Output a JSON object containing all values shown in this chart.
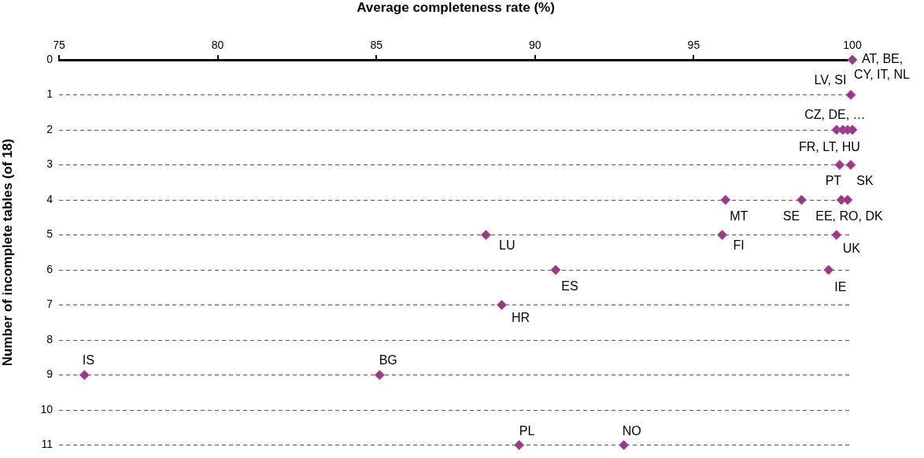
{
  "chart_data": {
    "type": "scatter",
    "xlabel": "Average completeness rate (%)",
    "ylabel": "Number of incomplete tables (of 18)",
    "xlim": [
      75,
      100
    ],
    "xticks": [
      75,
      80,
      85,
      90,
      95,
      100
    ],
    "ylim": [
      11,
      0
    ],
    "yticks": [
      0,
      1,
      2,
      3,
      4,
      5,
      6,
      7,
      8,
      9,
      10,
      11
    ],
    "grid": "y",
    "legend": false,
    "marker": "diamond",
    "series": [
      {
        "color": "#943c8a",
        "x": [
          100,
          99.95,
          99.5,
          99.7,
          99.85,
          100,
          99.6,
          99.95,
          96.0,
          98.4,
          99.65,
          99.85,
          88.45,
          95.9,
          99.5,
          90.65,
          99.25,
          88.95,
          75.8,
          85.1,
          89.5,
          92.8
        ],
        "values": [
          0,
          1,
          2,
          2,
          2,
          2,
          3,
          3,
          4,
          4,
          4,
          4,
          5,
          5,
          5,
          6,
          6,
          7,
          9,
          9,
          11,
          11
        ]
      }
    ],
    "annotations": [
      {
        "text": "AT, BE,",
        "x": 100,
        "y": 0
      },
      {
        "text": "CY, IT, NL",
        "x": 100,
        "y": 0
      },
      {
        "text": "LV, SI",
        "x": 99.95,
        "y": 1
      },
      {
        "text": "CZ, DE, …",
        "x": 99.85,
        "y": 2
      },
      {
        "text": "FR, LT, HU",
        "x": 99.7,
        "y": 2
      },
      {
        "text": "PT",
        "x": 99.6,
        "y": 3
      },
      {
        "text": "SK",
        "x": 99.95,
        "y": 3
      },
      {
        "text": "MT",
        "x": 96.0,
        "y": 4
      },
      {
        "text": "SE",
        "x": 98.4,
        "y": 4
      },
      {
        "text": "EE, RO, DK",
        "x": 99.85,
        "y": 4
      },
      {
        "text": "LU",
        "x": 88.45,
        "y": 5
      },
      {
        "text": "FI",
        "x": 95.9,
        "y": 5
      },
      {
        "text": "UK",
        "x": 99.5,
        "y": 5
      },
      {
        "text": "ES",
        "x": 90.65,
        "y": 6
      },
      {
        "text": "IE",
        "x": 99.25,
        "y": 6
      },
      {
        "text": "HR",
        "x": 88.95,
        "y": 7
      },
      {
        "text": "IS",
        "x": 75.8,
        "y": 9
      },
      {
        "text": "BG",
        "x": 85.1,
        "y": 9
      },
      {
        "text": "PL",
        "x": 89.5,
        "y": 11
      },
      {
        "text": "NO",
        "x": 92.8,
        "y": 11
      }
    ]
  }
}
